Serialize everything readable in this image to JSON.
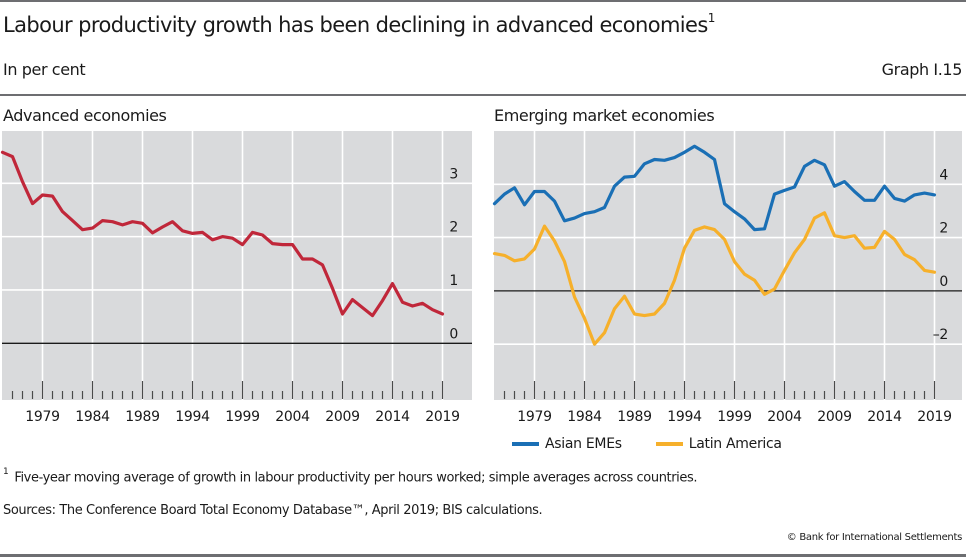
{
  "header": {
    "title": "Labour productivity growth has been declining in advanced economies",
    "title_footnote_marker": "1",
    "subtitle": "In per cent",
    "graph_number": "Graph I.15"
  },
  "footer": {
    "footnote_marker": "1",
    "footnote": "Five-year moving average of growth in labour productivity per hours worked; simple averages across countries.",
    "sources": "Sources: The Conference Board Total Economy Database™, April 2019; BIS calculations.",
    "copyright": "© Bank for International Settlements"
  },
  "colors": {
    "advanced": "#c0273a",
    "asian_emes": "#1a6fb5",
    "latin_america": "#f6b02b",
    "plot_bg": "#d9dadc",
    "grid": "#ffffff",
    "zero_line": "#1a1a1a"
  },
  "chart_data": [
    {
      "type": "line",
      "title": "Advanced economies",
      "xlabel": "",
      "ylabel": "",
      "x_start": 1975,
      "x_end": 2019,
      "xlim": [
        1975,
        2021.8
      ],
      "x_tick_labels": [
        "1979",
        "1984",
        "1989",
        "1994",
        "1999",
        "2004",
        "2009",
        "2014",
        "2019"
      ],
      "ylim": [
        -0.5,
        3.98
      ],
      "y_ticks": [
        0,
        1,
        2,
        3
      ],
      "y_axis_side": "right",
      "grid": true,
      "legend": null,
      "series": [
        {
          "name": "Advanced economies",
          "color_key": "advanced",
          "values": [
            3.58,
            3.5,
            3.03,
            2.62,
            2.78,
            2.76,
            2.47,
            2.3,
            2.13,
            2.16,
            2.3,
            2.28,
            2.22,
            2.28,
            2.25,
            2.07,
            2.18,
            2.28,
            2.11,
            2.06,
            2.08,
            1.94,
            2.0,
            1.97,
            1.85,
            2.08,
            2.03,
            1.87,
            1.85,
            1.85,
            1.58,
            1.58,
            1.47,
            1.03,
            0.55,
            0.82,
            0.67,
            0.52,
            0.8,
            1.12,
            0.77,
            0.7,
            0.75,
            0.63,
            0.55
          ]
        }
      ]
    },
    {
      "type": "line",
      "title": "Emerging market economies",
      "xlabel": "",
      "ylabel": "",
      "x_start": 1975,
      "x_end": 2019,
      "xlim": [
        1975,
        2021.8
      ],
      "x_tick_labels": [
        "1979",
        "1984",
        "1989",
        "1994",
        "1999",
        "2004",
        "2009",
        "2014",
        "2019"
      ],
      "ylim": [
        -2.97,
        6.0
      ],
      "y_ticks": [
        -2,
        0,
        2,
        4
      ],
      "y_tick_labels": [
        "–2",
        "0",
        "2",
        "4"
      ],
      "y_axis_side": "right",
      "grid": true,
      "legend": "bottom",
      "series": [
        {
          "name": "Asian EMEs",
          "color_key": "asian_emes",
          "values": [
            3.27,
            3.63,
            3.87,
            3.23,
            3.73,
            3.73,
            3.37,
            2.63,
            2.73,
            2.9,
            2.97,
            3.13,
            3.93,
            4.27,
            4.3,
            4.77,
            4.93,
            4.9,
            5.0,
            5.2,
            5.43,
            5.2,
            4.93,
            3.27,
            2.97,
            2.7,
            2.3,
            2.33,
            3.63,
            3.77,
            3.9,
            4.67,
            4.9,
            4.73,
            3.93,
            4.1,
            3.73,
            3.4,
            3.4,
            3.93,
            3.47,
            3.37,
            3.6,
            3.67,
            3.6
          ]
        },
        {
          "name": "Latin America",
          "color_key": "latin_america",
          "values": [
            1.4,
            1.33,
            1.13,
            1.2,
            1.57,
            2.43,
            1.87,
            1.1,
            -0.23,
            -1.03,
            -2.0,
            -1.57,
            -0.67,
            -0.2,
            -0.87,
            -0.93,
            -0.87,
            -0.47,
            0.4,
            1.6,
            2.27,
            2.4,
            2.3,
            1.93,
            1.1,
            0.63,
            0.4,
            -0.13,
            0.07,
            0.77,
            1.43,
            1.93,
            2.73,
            2.93,
            2.07,
            2.0,
            2.07,
            1.6,
            1.63,
            2.23,
            1.93,
            1.37,
            1.17,
            0.77,
            0.7
          ]
        }
      ]
    }
  ]
}
